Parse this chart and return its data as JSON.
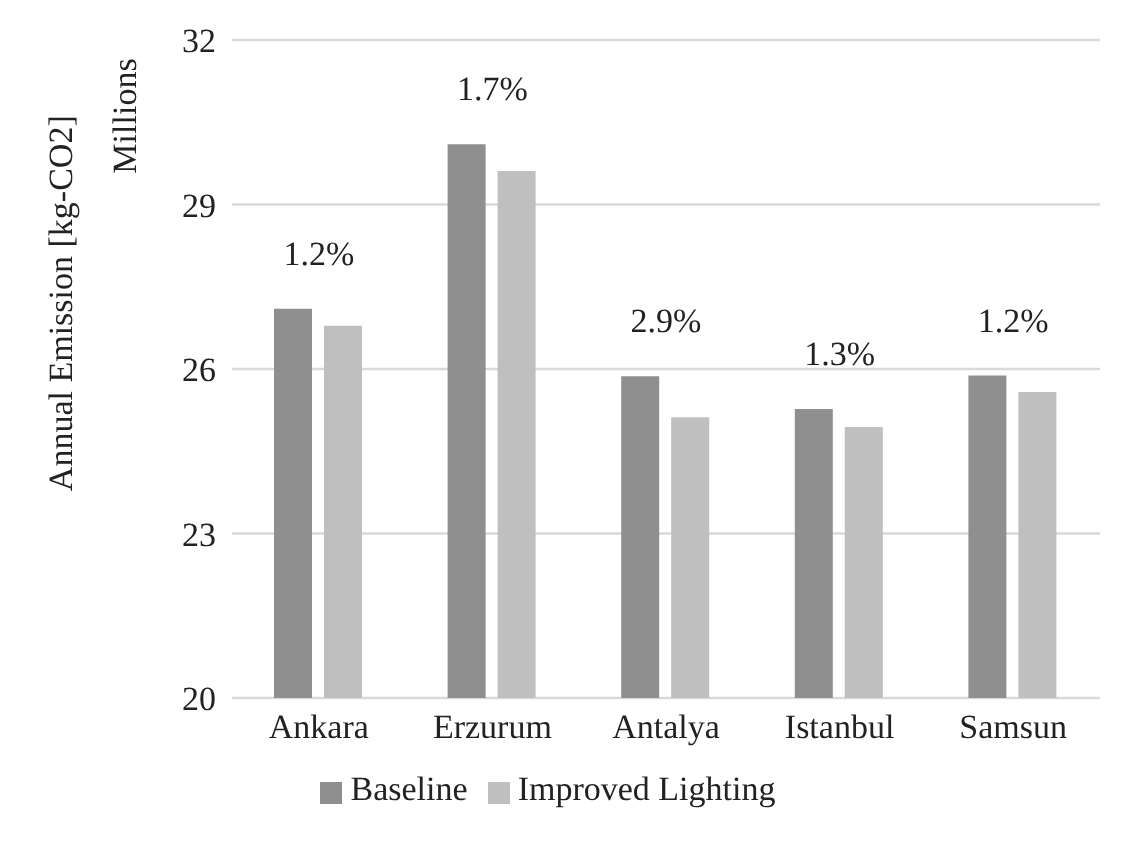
{
  "chart_data": {
    "type": "bar",
    "ylabel": "Annual Emission [kg-CO2]",
    "categories": [
      "Ankara",
      "Erzurum",
      "Antalya",
      "Istanbul",
      "Samsun"
    ],
    "series": [
      {
        "name": "Baseline",
        "color": "#8f8f8f",
        "values": [
          27.1,
          30.1,
          25.87,
          25.27,
          25.88
        ]
      },
      {
        "name": "Improved Lighting",
        "color": "#bfbfbf",
        "values": [
          26.79,
          29.61,
          25.12,
          24.94,
          25.58
        ]
      }
    ],
    "ylim": [
      20,
      32
    ],
    "yticks": [
      20,
      23,
      26,
      29,
      32
    ],
    "grid": "y",
    "legend": "bottom",
    "annotations": [
      "Millions",
      {
        "text": "1.2%",
        "x": "Ankara",
        "y": 27.1
      },
      {
        "text": "1.7%",
        "x": "Erzurum",
        "y": 30.1
      },
      {
        "text": "2.9%",
        "x": "Antalya",
        "y": 25.87
      },
      {
        "text": "1.3%",
        "x": "Istanbul",
        "y": 25.27
      },
      {
        "text": "1.2%",
        "x": "Samsun",
        "y": 25.88
      }
    ]
  }
}
